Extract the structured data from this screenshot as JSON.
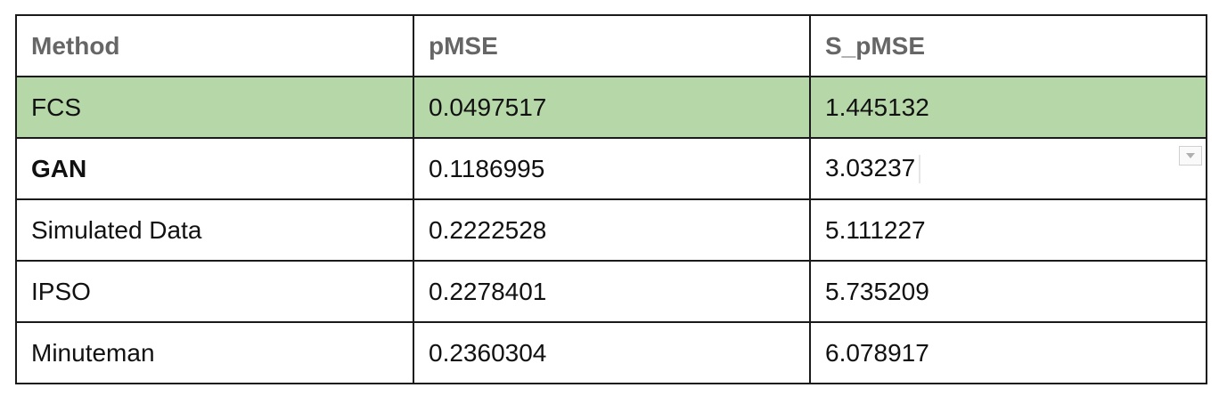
{
  "table": {
    "headers": [
      "Method",
      "pMSE",
      "S_pMSE"
    ],
    "rows": [
      {
        "method": "FCS",
        "pmse": "0.0497517",
        "spmse": "1.445132",
        "highlight": true,
        "bold": false
      },
      {
        "method": "GAN",
        "pmse": "0.1186995",
        "spmse": "3.03237",
        "highlight": false,
        "bold": true
      },
      {
        "method": "Simulated Data",
        "pmse": "0.2222528",
        "spmse": "5.111227",
        "highlight": false,
        "bold": false
      },
      {
        "method": "IPSO",
        "pmse": "0.2278401",
        "spmse": "5.735209",
        "highlight": false,
        "bold": false
      },
      {
        "method": "Minuteman",
        "pmse": "0.2360304",
        "spmse": "6.078917",
        "highlight": false,
        "bold": false
      }
    ]
  },
  "colors": {
    "highlight_row": "#b6d7a8",
    "header_text": "#666666",
    "border": "#1a1a1a"
  },
  "icons": {
    "cell_dropdown": "chevron-down-icon"
  }
}
